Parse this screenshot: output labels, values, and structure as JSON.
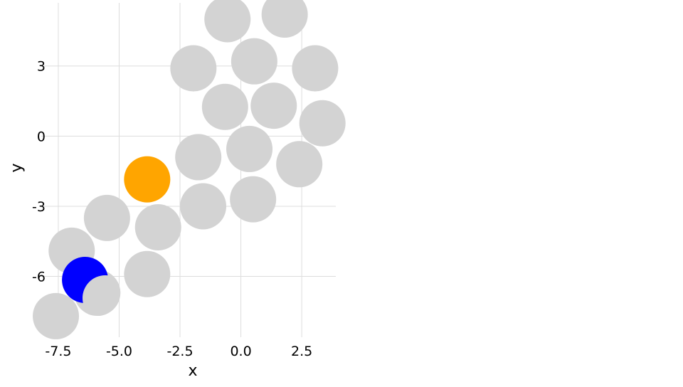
{
  "chart_data": {
    "type": "scatter",
    "title": "",
    "xlabel": "x",
    "ylabel": "y",
    "xlim": [
      -8.2,
      3.9
    ],
    "ylim": [
      -8.6,
      5.7
    ],
    "grid": true,
    "legend": "none",
    "x_ticks": [
      {
        "value": -7.5,
        "label": "-7.5"
      },
      {
        "value": -5.0,
        "label": "-5.0"
      },
      {
        "value": -2.5,
        "label": "-2.5"
      },
      {
        "value": 0.0,
        "label": "0.0"
      },
      {
        "value": 2.5,
        "label": "2.5"
      }
    ],
    "y_ticks": [
      {
        "value": 3,
        "label": "3"
      },
      {
        "value": 0,
        "label": "0"
      },
      {
        "value": -3,
        "label": "-3"
      },
      {
        "value": -6,
        "label": "-6"
      }
    ],
    "marker_radius": 0.95,
    "series": [
      {
        "color": "#d3d3d3",
        "points": [
          {
            "x": -0.55,
            "y": 5.0
          },
          {
            "x": 1.8,
            "y": 5.2
          },
          {
            "x": -1.95,
            "y": 2.9
          },
          {
            "x": 0.55,
            "y": 3.2
          },
          {
            "x": 3.05,
            "y": 2.9
          },
          {
            "x": -0.65,
            "y": 1.25
          },
          {
            "x": 1.35,
            "y": 1.3
          },
          {
            "x": 3.35,
            "y": 0.55
          },
          {
            "x": -1.75,
            "y": -0.9
          },
          {
            "x": 0.35,
            "y": -0.55
          },
          {
            "x": 2.4,
            "y": -1.2
          },
          {
            "x": -1.55,
            "y": -3.0
          },
          {
            "x": 0.5,
            "y": -2.7
          },
          {
            "x": -3.4,
            "y": -3.9
          },
          {
            "x": -5.5,
            "y": -3.5
          },
          {
            "x": -6.95,
            "y": -4.9
          },
          {
            "x": -3.85,
            "y": -5.9
          },
          {
            "x": -5.9,
            "y": -6.7
          },
          {
            "x": -7.6,
            "y": -7.7
          }
        ]
      },
      {
        "color": "#ffa500",
        "points": [
          {
            "x": -3.85,
            "y": -1.85
          }
        ]
      },
      {
        "color": "#0000ff",
        "points": [
          {
            "x": -6.4,
            "y": -6.15
          }
        ]
      }
    ]
  }
}
